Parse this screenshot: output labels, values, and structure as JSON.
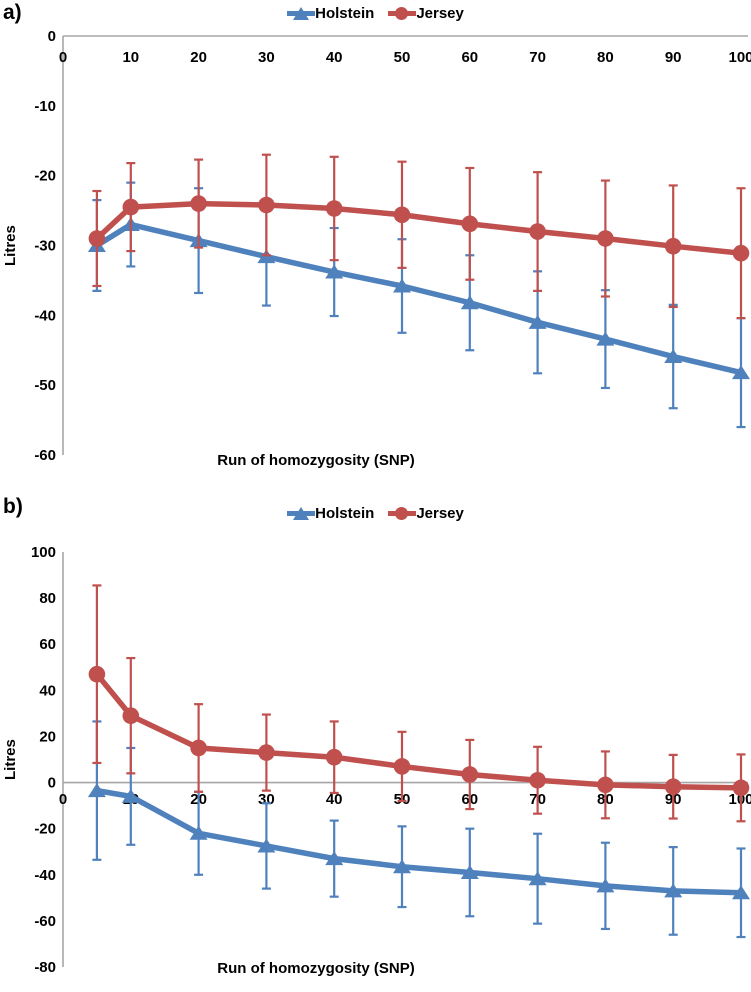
{
  "chart_data": [
    {
      "type": "line",
      "panel_label": "a)",
      "xlabel": "Run of homozygosity (SNP)",
      "ylabel": "Litres",
      "legend_position": "top-center",
      "grid": false,
      "xlim": [
        0,
        100
      ],
      "ylim": [
        -60,
        0
      ],
      "x_ticks": [
        0,
        10,
        20,
        30,
        40,
        50,
        60,
        70,
        80,
        90,
        100
      ],
      "y_ticks": [
        0,
        -10,
        -20,
        -30,
        -40,
        -50,
        -60
      ],
      "x": [
        5,
        10,
        20,
        30,
        40,
        50,
        60,
        70,
        80,
        90,
        100
      ],
      "series": [
        {
          "name": "Holstein",
          "color": "#4F81BD",
          "marker": "triangle",
          "values": [
            -30,
            -27,
            -29.3,
            -31.6,
            -33.8,
            -35.8,
            -38.2,
            -41,
            -43.4,
            -45.9,
            -48.2
          ],
          "errors": [
            6.5,
            6,
            7.5,
            7,
            6.3,
            6.7,
            6.8,
            7.3,
            7,
            7.4,
            7.8
          ]
        },
        {
          "name": "Jersey",
          "color": "#C0504D",
          "marker": "circle",
          "values": [
            -29,
            -24.5,
            -24,
            -24.2,
            -24.7,
            -25.6,
            -26.9,
            -28,
            -29,
            -30.1,
            -31.1
          ],
          "errors": [
            6.8,
            6.3,
            6.3,
            7.2,
            7.4,
            7.6,
            8,
            8.5,
            8.3,
            8.7,
            9.3
          ]
        }
      ]
    },
    {
      "type": "line",
      "panel_label": "b)",
      "xlabel": "Run of homozygosity (SNP)",
      "ylabel": "Litres",
      "legend_position": "top-center",
      "grid": false,
      "xlim": [
        0,
        100
      ],
      "ylim": [
        -80,
        100
      ],
      "x_ticks": [
        0,
        10,
        20,
        30,
        40,
        50,
        60,
        70,
        80,
        90,
        100
      ],
      "y_ticks": [
        100,
        80,
        60,
        40,
        20,
        0,
        -20,
        -40,
        -60,
        -80
      ],
      "x": [
        5,
        10,
        20,
        30,
        40,
        50,
        60,
        70,
        80,
        90,
        100
      ],
      "series": [
        {
          "name": "Holstein",
          "color": "#4F81BD",
          "marker": "triangle",
          "values": [
            -3.5,
            -6,
            -22,
            -27.5,
            -33,
            -36.5,
            -39,
            -41.7,
            -44.8,
            -47,
            -47.8
          ],
          "errors": [
            30,
            21,
            18,
            18.5,
            16.5,
            17.5,
            19,
            19.5,
            18.7,
            19,
            19.2
          ]
        },
        {
          "name": "Jersey",
          "color": "#C0504D",
          "marker": "circle",
          "values": [
            47,
            29,
            15,
            13,
            11,
            7,
            3.5,
            1,
            -1,
            -1.8,
            -2.3
          ],
          "errors": [
            38.5,
            25,
            19,
            16.5,
            15.5,
            15,
            15,
            14.5,
            14.5,
            13.8,
            14.5
          ]
        }
      ]
    }
  ]
}
